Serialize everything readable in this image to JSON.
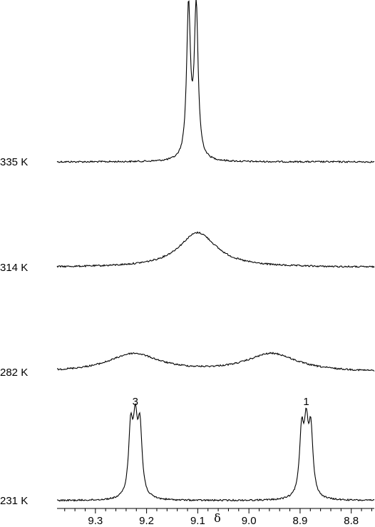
{
  "chart_data": {
    "type": "line",
    "xlabel": "δ",
    "xlim": [
      9.375,
      8.755
    ],
    "x_reversed": true,
    "x_ticks": [
      "9.3",
      "9.2",
      "9.1",
      "9.0",
      "8.9",
      "8.8"
    ],
    "x_tick_values": [
      9.3,
      9.2,
      9.1,
      9.0,
      8.9,
      8.8
    ],
    "minor_tick_step": 0.02,
    "grid": false,
    "axis_color": "#000000",
    "trace_color": "#000000",
    "series": [
      {
        "name": "335 K",
        "baseline_offset": 3,
        "peaks": [
          {
            "center": 9.118,
            "height": 1.0,
            "width": 0.0045
          },
          {
            "center": 9.103,
            "height": 1.0,
            "width": 0.0045
          }
        ]
      },
      {
        "name": "314 K",
        "baseline_offset": 2,
        "peaks": [
          {
            "center": 9.1,
            "height": 0.23,
            "width": 0.045
          }
        ]
      },
      {
        "name": "282 K",
        "baseline_offset": 1,
        "peaks": [
          {
            "center": 9.225,
            "height": 0.12,
            "width": 0.06
          },
          {
            "center": 8.955,
            "height": 0.12,
            "width": 0.06
          }
        ]
      },
      {
        "name": "231 K",
        "baseline_offset": 0,
        "peaks": [
          {
            "center": 9.231,
            "height": 0.44,
            "width": 0.005
          },
          {
            "center": 9.222,
            "height": 0.44,
            "width": 0.005
          },
          {
            "center": 9.213,
            "height": 0.44,
            "width": 0.005
          },
          {
            "center": 8.897,
            "height": 0.42,
            "width": 0.005
          },
          {
            "center": 8.888,
            "height": 0.42,
            "width": 0.005
          },
          {
            "center": 8.879,
            "height": 0.42,
            "width": 0.005
          }
        ]
      }
    ],
    "annotations": [
      {
        "text": "3",
        "x": 9.222,
        "series": "231 K"
      },
      {
        "text": "1",
        "x": 8.888,
        "series": "231 K"
      }
    ]
  }
}
